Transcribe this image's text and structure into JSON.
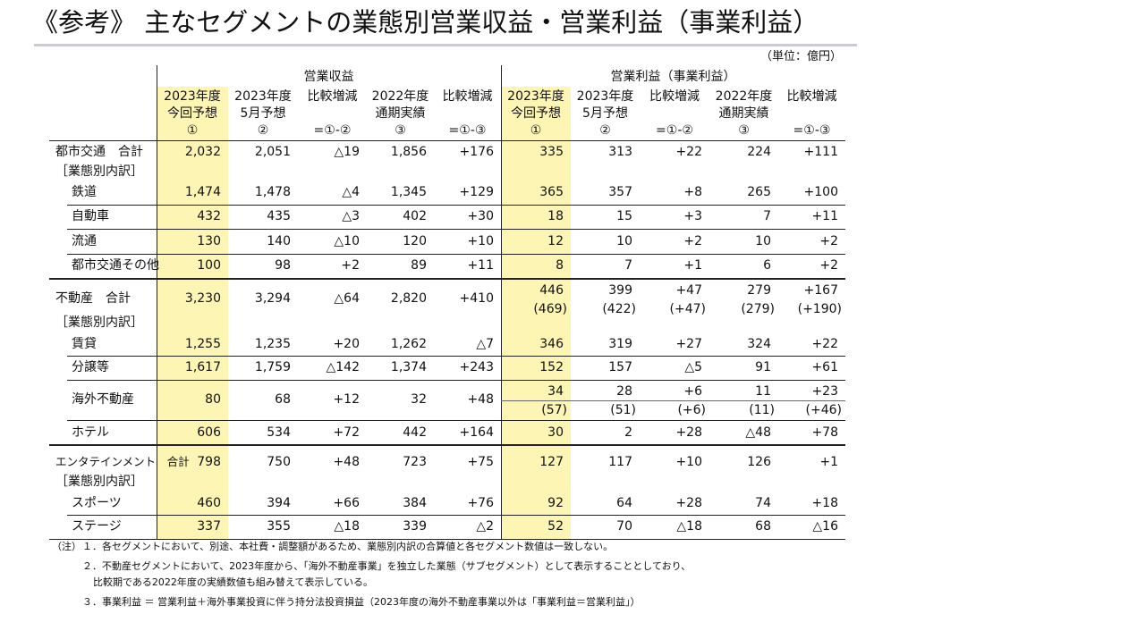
{
  "title": "《参考》 主なセグメントの業態別営業収益・営業利益（事業利益）",
  "unit": "（単位：億円）",
  "table": {
    "groups": [
      "営業収益",
      "営業利益（事業利益）"
    ],
    "columns": [
      [
        "2023年度",
        "今回予想",
        "①"
      ],
      [
        "2023年度",
        "5月予想",
        "②"
      ],
      [
        "比較増減",
        "",
        "=①-②"
      ],
      [
        "2022年度",
        "通期実績",
        "③"
      ],
      [
        "比較増減",
        "",
        "=①-③"
      ],
      [
        "2023年度",
        "今回予想",
        "①"
      ],
      [
        "2023年度",
        "5月予想",
        "②"
      ],
      [
        "比較増減",
        "",
        "=①-②"
      ],
      [
        "2022年度",
        "通期実績",
        "③"
      ],
      [
        "比較増減",
        "",
        "=①-③"
      ]
    ],
    "rows": [
      {
        "label": "都市交通　合計",
        "values": [
          "2,032",
          "2,051",
          "△19",
          "1,856",
          "+176",
          "335",
          "313",
          "+22",
          "224",
          "+111"
        ]
      },
      {
        "label": "［業態別内訳］"
      },
      {
        "label": "鉄道",
        "values": [
          "1,474",
          "1,478",
          "△4",
          "1,345",
          "+129",
          "365",
          "357",
          "+8",
          "265",
          "+100"
        ]
      },
      {
        "label": "自動車",
        "values": [
          "432",
          "435",
          "△3",
          "402",
          "+30",
          "18",
          "15",
          "+3",
          "7",
          "+11"
        ]
      },
      {
        "label": "流通",
        "values": [
          "130",
          "140",
          "△10",
          "120",
          "+10",
          "12",
          "10",
          "+2",
          "10",
          "+2"
        ]
      },
      {
        "label": "都市交通その他",
        "values": [
          "100",
          "98",
          "+2",
          "89",
          "+11",
          "8",
          "7",
          "+1",
          "6",
          "+2"
        ]
      },
      {
        "label": "不動産　合計",
        "values": [
          "3,230",
          "3,294",
          "△64",
          "2,820",
          "+410",
          "446",
          "399",
          "+47",
          "279",
          "+167"
        ],
        "paren_values": [
          "(469)",
          "(422)",
          "(+47)",
          "(279)",
          "(+190)"
        ]
      },
      {
        "label": "［業態別内訳］"
      },
      {
        "label": "賃貸",
        "values": [
          "1,255",
          "1,235",
          "+20",
          "1,262",
          "△7",
          "346",
          "319",
          "+27",
          "324",
          "+22"
        ]
      },
      {
        "label": "分譲等",
        "values": [
          "1,617",
          "1,759",
          "△142",
          "1,374",
          "+243",
          "152",
          "157",
          "△5",
          "91",
          "+61"
        ]
      },
      {
        "label": "海外不動産",
        "values": [
          "80",
          "68",
          "+12",
          "32",
          "+48",
          "34",
          "28",
          "+6",
          "11",
          "+23"
        ],
        "paren_values": [
          "(57)",
          "(51)",
          "(+6)",
          "(11)",
          "(+46)"
        ]
      },
      {
        "label": "ホテル",
        "values": [
          "606",
          "534",
          "+72",
          "442",
          "+164",
          "30",
          "2",
          "+28",
          "△48",
          "+78"
        ]
      },
      {
        "label": "エンタテインメント　合計",
        "values": [
          "798",
          "750",
          "+48",
          "723",
          "+75",
          "127",
          "117",
          "+10",
          "126",
          "+1"
        ]
      },
      {
        "label": "［業態別内訳］"
      },
      {
        "label": "スポーツ",
        "values": [
          "460",
          "394",
          "+66",
          "384",
          "+76",
          "92",
          "64",
          "+28",
          "74",
          "+18"
        ]
      },
      {
        "label": "ステージ",
        "values": [
          "337",
          "355",
          "△18",
          "339",
          "△2",
          "52",
          "70",
          "△18",
          "68",
          "△16"
        ]
      }
    ]
  },
  "notes": {
    "label": "（注）",
    "lines": [
      "１．各セグメントにおいて、別途、本社費・調整額があるため、業態別内訳の合算値と各セグメント数値は一致しない。",
      "２．不動産セグメントにおいて、2023年度から、「海外不動産事業」を独立した業態（サブセグメント）として表示することとしており、",
      "比較期である2022年度の実績数値も組み替えて表示している。",
      "３．事業利益 ＝ 営業利益＋海外事業投資に伴う持分法投資損益（2023年度の海外不動産事業以外は「事業利益＝営業利益」）"
    ]
  }
}
